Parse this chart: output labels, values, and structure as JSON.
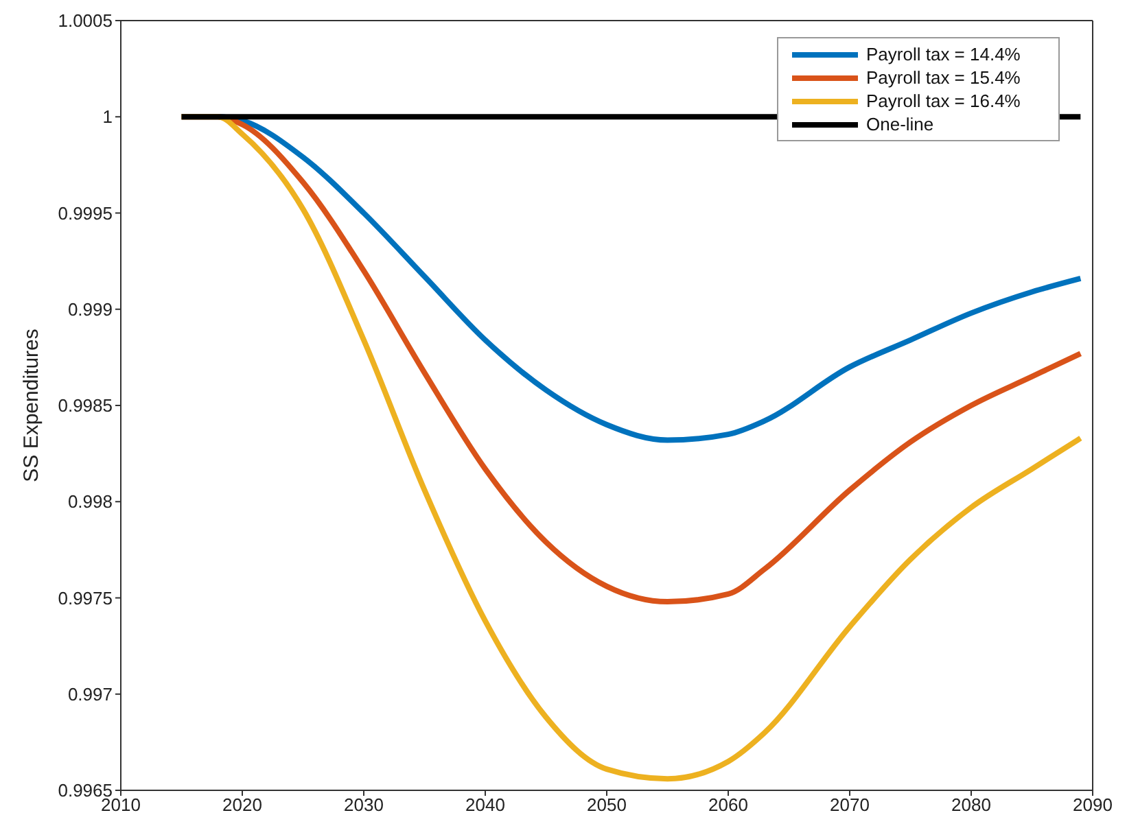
{
  "chart_data": {
    "type": "line",
    "ylabel": "SS Expenditures",
    "x": [
      2015,
      2018,
      2020,
      2025,
      2030,
      2035,
      2040,
      2045,
      2050,
      2055,
      2060,
      2063,
      2070,
      2075,
      2080,
      2085,
      2089
    ],
    "series": [
      {
        "name": "Payroll tax = 14.4%",
        "color": "#0072bd",
        "values": [
          1,
          1,
          0.99998,
          0.99979,
          0.9995,
          0.99917,
          0.99884,
          0.99858,
          0.9984,
          0.99832,
          0.99835,
          0.99842,
          0.9987,
          0.99884,
          0.99898,
          0.99909,
          0.99916
        ]
      },
      {
        "name": "Payroll tax = 15.4%",
        "color": "#d95319",
        "values": [
          1,
          1,
          0.99996,
          0.99966,
          0.9992,
          0.99867,
          0.99817,
          0.99779,
          0.99756,
          0.99748,
          0.99752,
          0.99765,
          0.99806,
          0.99831,
          0.9985,
          0.99865,
          0.99877
        ]
      },
      {
        "name": "Payroll tax = 16.4%",
        "color": "#edb120",
        "values": [
          1,
          1,
          0.99991,
          0.99952,
          0.99884,
          0.99806,
          0.99738,
          0.99688,
          0.99661,
          0.99656,
          0.99665,
          0.9968,
          0.99735,
          0.9977,
          0.99797,
          0.99817,
          0.99833
        ]
      },
      {
        "name": "One-line",
        "color": "#000000",
        "x": [
          2015,
          2089
        ],
        "values": [
          1,
          1
        ]
      }
    ],
    "xlim": [
      2010,
      2090
    ],
    "xticks": [
      2010,
      2020,
      2030,
      2040,
      2050,
      2060,
      2070,
      2080,
      2090
    ],
    "ylim": [
      0.9965,
      1.0005
    ],
    "yticks": [
      0.9965,
      0.997,
      0.9975,
      0.998,
      0.9985,
      0.999,
      0.9995,
      {
        "value": 1,
        "label": "1"
      },
      1.0005
    ],
    "grid": false,
    "legend": "top right",
    "marker": "none",
    "line_style": "solid"
  }
}
